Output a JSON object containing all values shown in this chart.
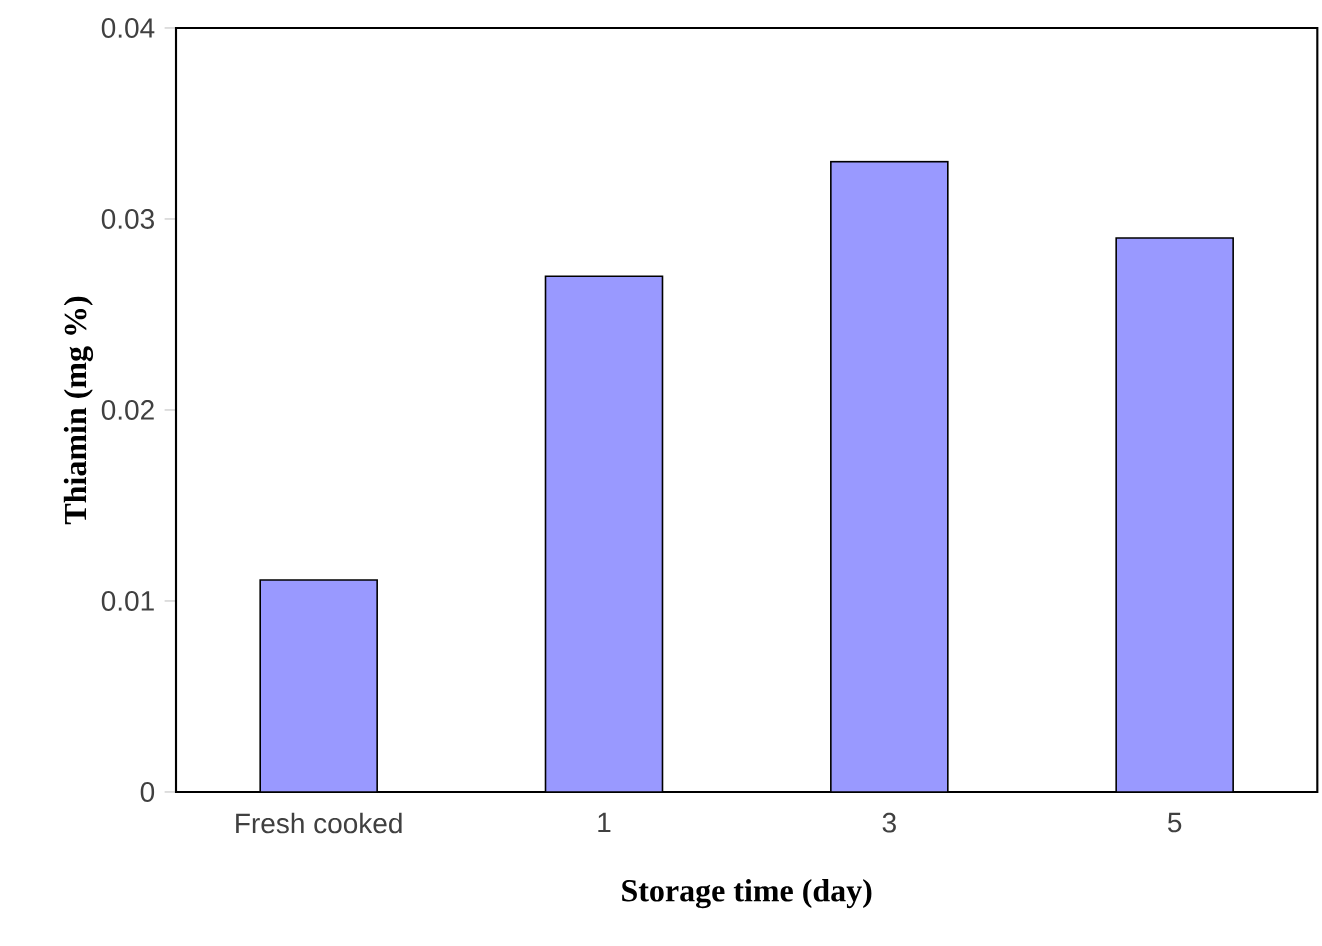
{
  "chart_data": {
    "type": "bar",
    "xlabel": "Storage time (day)",
    "ylabel": "Thiamin (mg %)",
    "categories": [
      "Fresh cooked",
      "1",
      "3",
      "5"
    ],
    "values": [
      0.0111,
      0.027,
      0.033,
      0.029
    ],
    "color": "#9999ff",
    "ylim": [
      0,
      0.04
    ],
    "yticks": [
      0,
      0.01,
      0.02,
      0.03,
      0.04
    ]
  }
}
